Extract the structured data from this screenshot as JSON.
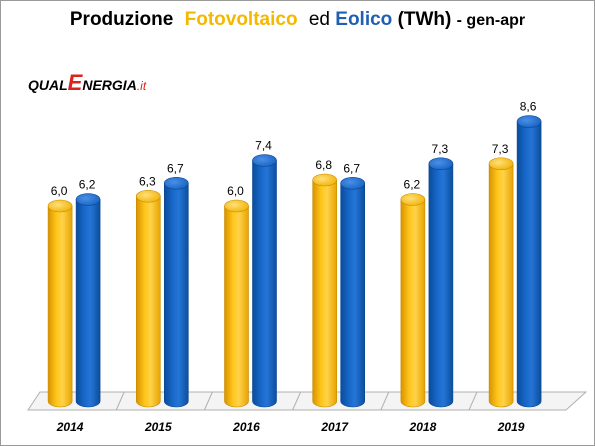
{
  "title": {
    "part1": "Produzione",
    "part2": "Fotovoltaico",
    "part3": "ed",
    "part4": "Eolico",
    "part5": "(TWh)",
    "part6": "- gen-apr"
  },
  "logo": {
    "prefix": "QUAL",
    "e_letter": "E",
    "rest": "NERGIA",
    "suffix": ".it"
  },
  "colors": {
    "fotovoltaico": "#f5b800",
    "eolico": "#0d5cb6"
  },
  "chart_data": {
    "type": "bar",
    "title": "Produzione Fotovoltaico ed Eolico (TWh) - gen-apr",
    "categories": [
      "2014",
      "2015",
      "2016",
      "2017",
      "2018",
      "2019"
    ],
    "series": [
      {
        "name": "Fotovoltaico",
        "values": [
          6.0,
          6.3,
          6.0,
          6.8,
          6.2,
          7.3
        ],
        "labels": [
          "6,0",
          "6,3",
          "6,0",
          "6,8",
          "6,2",
          "7,3"
        ]
      },
      {
        "name": "Eolico",
        "values": [
          6.2,
          6.7,
          7.4,
          6.7,
          7.3,
          8.6
        ],
        "labels": [
          "6,2",
          "6,7",
          "7,4",
          "6,7",
          "7,3",
          "8,6"
        ]
      }
    ],
    "ylim": [
      0,
      10
    ],
    "grid": false,
    "legend": "none"
  }
}
